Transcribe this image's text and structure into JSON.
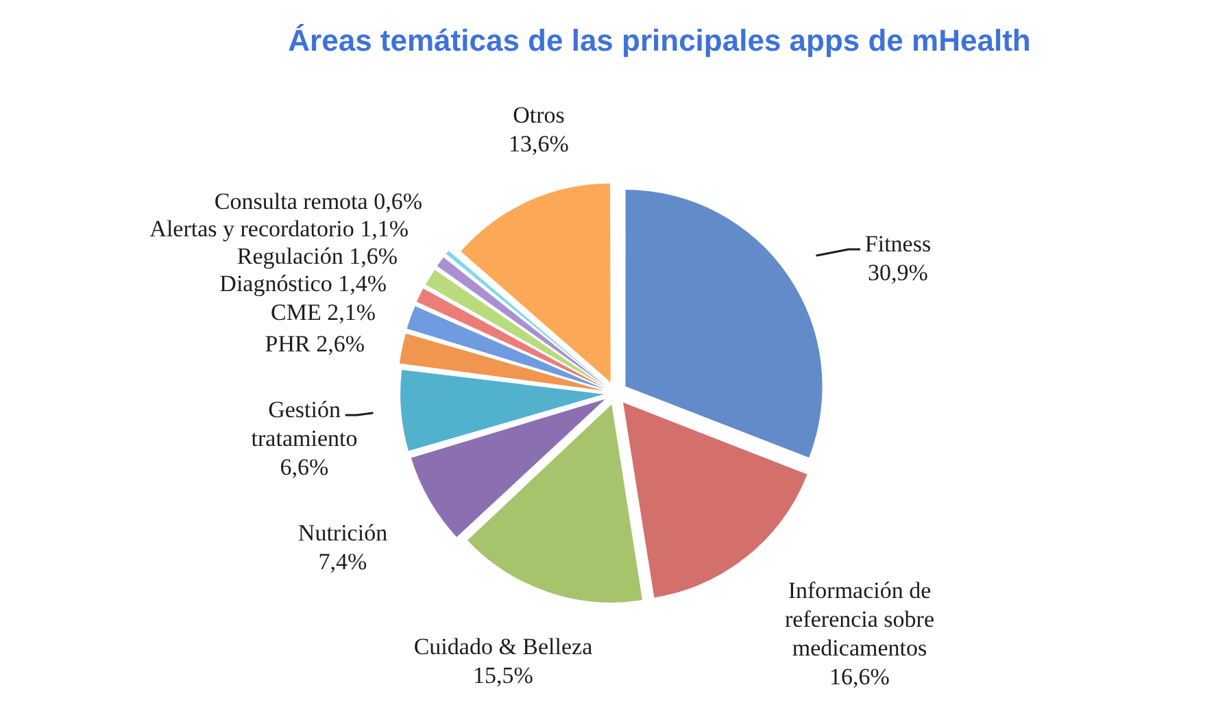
{
  "chart_data": {
    "type": "pie",
    "title": "Áreas temáticas de las principales apps de mHealth",
    "categories": [
      "Fitness",
      "Información de referencia sobre medicamentos",
      "Cuidado & Belleza",
      "Nutrición",
      "Gestión tratamiento",
      "PHR",
      "CME",
      "Diagnóstico",
      "Regulación",
      "Alertas y recordatorio",
      "Consulta remota",
      "Otros"
    ],
    "values": [
      30.9,
      16.6,
      15.5,
      7.4,
      6.6,
      2.6,
      2.1,
      1.4,
      1.6,
      1.1,
      0.6,
      13.6
    ],
    "colors": [
      "#628bc9",
      "#d3706c",
      "#a6c46b",
      "#8b70b1",
      "#52b1cd",
      "#f1964f",
      "#6f9be0",
      "#ec7c78",
      "#b8dc7b",
      "#a890d1",
      "#80d6ec",
      "#fca957"
    ],
    "value_labels": [
      "30,9%",
      "16,6%",
      "15,5%",
      "7,4%",
      "6,6%",
      "2,6%",
      "2,1%",
      "1,4%",
      "1,6%",
      "1,1%",
      "0,6%",
      "13,6%"
    ]
  }
}
